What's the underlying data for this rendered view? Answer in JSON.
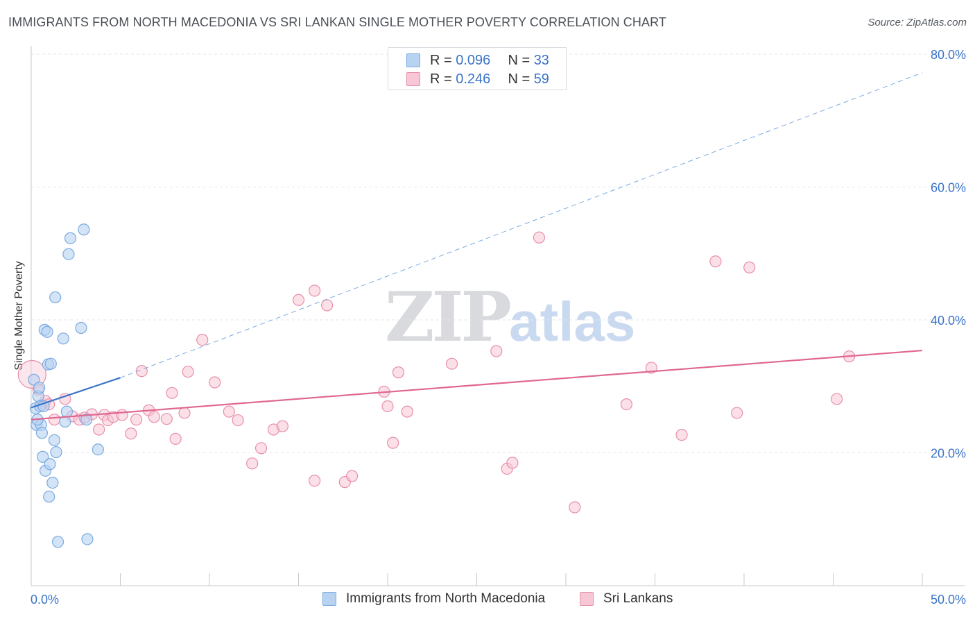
{
  "title": "IMMIGRANTS FROM NORTH MACEDONIA VS SRI LANKAN SINGLE MOTHER POVERTY CORRELATION CHART",
  "source": "Source: ZipAtlas.com",
  "watermark": {
    "zip": "ZIP",
    "atlas": "atlas"
  },
  "legend_top": {
    "r_label": "R =",
    "n_label": "N =",
    "series": [
      {
        "r": "0.096",
        "n": "33"
      },
      {
        "r": "0.246",
        "n": "59"
      }
    ]
  },
  "legend_bottom": [
    "Immigrants from North Macedonia",
    "Sri Lankans"
  ],
  "colors": {
    "blue_fill": "#b8d2f2",
    "blue_stroke": "#7aaae0",
    "blue_line": "#3a73c9",
    "pink_fill": "#f8c7d6",
    "pink_stroke": "#e88fab",
    "pink_line": "#e06790",
    "tick_label": "#3a73c9",
    "grid": "#e3e6ea"
  },
  "chart_data": {
    "type": "scatter",
    "title": "IMMIGRANTS FROM NORTH MACEDONIA VS SRI LANKAN SINGLE MOTHER POVERTY CORRELATION CHART",
    "xlabel": "",
    "ylabel": "Single Mother Poverty",
    "xlim": [
      0,
      50
    ],
    "ylim": [
      0,
      80
    ],
    "x_tick_labels": [
      "0.0%",
      "50.0%"
    ],
    "y_ticks": [
      20,
      40,
      60,
      80
    ],
    "y_tick_labels": [
      "20.0%",
      "40.0%",
      "60.0%",
      "80.0%"
    ],
    "series": [
      {
        "name": "Immigrants from North Macedonia",
        "color": "blue",
        "r": 0.096,
        "n": 33,
        "points": [
          [
            0.15,
            31.0
          ],
          [
            0.25,
            26.7
          ],
          [
            0.3,
            24.2
          ],
          [
            0.4,
            28.5
          ],
          [
            0.45,
            29.8
          ],
          [
            0.5,
            27.0
          ],
          [
            0.55,
            24.2
          ],
          [
            0.6,
            23.0
          ],
          [
            0.65,
            19.4
          ],
          [
            0.7,
            27.0
          ],
          [
            0.75,
            38.5
          ],
          [
            0.8,
            17.3
          ],
          [
            0.9,
            38.2
          ],
          [
            0.95,
            33.3
          ],
          [
            1.0,
            13.4
          ],
          [
            1.05,
            18.3
          ],
          [
            1.1,
            33.4
          ],
          [
            1.2,
            15.5
          ],
          [
            1.3,
            21.9
          ],
          [
            1.35,
            43.4
          ],
          [
            1.4,
            20.1
          ],
          [
            1.5,
            6.6
          ],
          [
            1.8,
            37.2
          ],
          [
            1.9,
            24.7
          ],
          [
            2.0,
            26.2
          ],
          [
            2.1,
            49.9
          ],
          [
            2.2,
            52.3
          ],
          [
            2.8,
            38.8
          ],
          [
            3.1,
            25.0
          ],
          [
            2.95,
            53.6
          ],
          [
            3.15,
            7.0
          ],
          [
            3.75,
            20.5
          ],
          [
            0.35,
            25.0
          ]
        ],
        "trend": {
          "x": [
            0,
            5
          ],
          "y": [
            26.8,
            31.3
          ],
          "extended_to": [
            50,
            77.2
          ]
        }
      },
      {
        "name": "Sri Lankans",
        "color": "pink",
        "r": 0.246,
        "n": 59,
        "points": [
          [
            0.05,
            31.8
          ],
          [
            0.4,
            29.5
          ],
          [
            0.6,
            27.2
          ],
          [
            0.8,
            27.8
          ],
          [
            1.0,
            27.3
          ],
          [
            1.3,
            25.0
          ],
          [
            1.9,
            28.1
          ],
          [
            2.3,
            25.5
          ],
          [
            2.7,
            25.0
          ],
          [
            3.0,
            25.3
          ],
          [
            3.4,
            25.8
          ],
          [
            3.8,
            23.5
          ],
          [
            4.1,
            25.7
          ],
          [
            4.3,
            24.9
          ],
          [
            4.6,
            25.4
          ],
          [
            5.1,
            25.7
          ],
          [
            5.6,
            22.9
          ],
          [
            5.9,
            25.0
          ],
          [
            6.6,
            26.4
          ],
          [
            6.9,
            25.4
          ],
          [
            7.6,
            25.1
          ],
          [
            7.9,
            29.0
          ],
          [
            8.1,
            22.1
          ],
          [
            8.6,
            26.0
          ],
          [
            8.8,
            32.2
          ],
          [
            9.6,
            37.0
          ],
          [
            10.3,
            30.6
          ],
          [
            11.1,
            26.2
          ],
          [
            11.6,
            24.9
          ],
          [
            12.4,
            18.4
          ],
          [
            12.9,
            20.7
          ],
          [
            13.6,
            23.5
          ],
          [
            14.1,
            24.0
          ],
          [
            15.0,
            43.0
          ],
          [
            15.9,
            44.4
          ],
          [
            16.6,
            42.2
          ],
          [
            15.9,
            15.8
          ],
          [
            17.6,
            15.6
          ],
          [
            18.0,
            16.5
          ],
          [
            19.8,
            29.2
          ],
          [
            20.0,
            27.0
          ],
          [
            20.3,
            21.5
          ],
          [
            21.1,
            26.2
          ],
          [
            20.6,
            32.1
          ],
          [
            23.6,
            33.4
          ],
          [
            26.1,
            35.3
          ],
          [
            26.7,
            17.6
          ],
          [
            27.0,
            18.5
          ],
          [
            28.5,
            52.4
          ],
          [
            30.5,
            11.8
          ],
          [
            33.4,
            27.3
          ],
          [
            34.8,
            32.8
          ],
          [
            36.5,
            22.7
          ],
          [
            38.4,
            48.8
          ],
          [
            39.6,
            26.0
          ],
          [
            40.3,
            47.9
          ],
          [
            45.2,
            28.1
          ],
          [
            45.9,
            34.5
          ],
          [
            6.2,
            32.3
          ]
        ],
        "trend": {
          "x": [
            0,
            50
          ],
          "y": [
            25.0,
            35.4
          ]
        }
      }
    ]
  }
}
